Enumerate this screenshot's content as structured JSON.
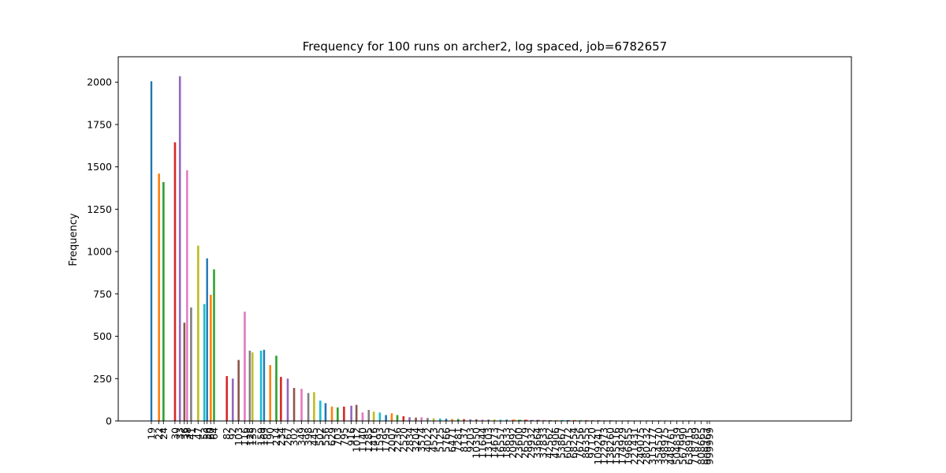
{
  "chart_data": {
    "type": "bar",
    "title": "Frequency for 100 runs on archer2, log spaced, job=6782657",
    "xlabel": "",
    "ylabel": "Frequency",
    "ylim": [
      0,
      2150
    ],
    "yticks": [
      0,
      250,
      500,
      750,
      1000,
      1250,
      1500,
      1750,
      2000
    ],
    "grid": false,
    "legend": "none",
    "colors": [
      "#1f77b4",
      "#ff7f0e",
      "#2ca02c",
      "#d62728",
      "#9467bd",
      "#8c564b",
      "#e377c2",
      "#7f7f7f",
      "#bcbd22",
      "#17becf"
    ],
    "categories": [
      "19",
      "22",
      "24",
      "30",
      "33",
      "36",
      "38",
      "41",
      "47",
      "53",
      "56",
      "60",
      "64",
      "82",
      "92",
      "103",
      "116",
      "128",
      "135",
      "159",
      "169",
      "190",
      "214",
      "234",
      "267",
      "302",
      "349",
      "398",
      "445",
      "502",
      "556",
      "629",
      "703",
      "795",
      "916",
      "1012",
      "1140",
      "1285",
      "1416",
      "1593",
      "1795",
      "2007",
      "2236",
      "2520",
      "2834",
      "3204",
      "3574",
      "4022",
      "4523",
      "5125",
      "5766",
      "6471",
      "7281",
      "8137",
      "9203",
      "10350",
      "11644",
      "13103",
      "14673",
      "16557",
      "18633",
      "20992",
      "23600",
      "26579",
      "29932",
      "33664",
      "37833",
      "42562",
      "47906",
      "53867",
      "60572",
      "68254",
      "76756",
      "86355",
      "97120",
      "109241",
      "122973",
      "138260",
      "155516",
      "174929",
      "196855",
      "221431",
      "249075",
      "280232",
      "315177",
      "354570",
      "398975",
      "448761",
      "504839",
      "567990",
      "638915",
      "718789",
      "808665",
      "909767",
      "999999"
    ],
    "values": [
      2005,
      1460,
      1410,
      1645,
      2035,
      580,
      1480,
      670,
      1035,
      690,
      960,
      745,
      895,
      265,
      250,
      360,
      645,
      415,
      405,
      415,
      420,
      330,
      385,
      260,
      250,
      195,
      190,
      165,
      170,
      120,
      105,
      85,
      80,
      85,
      90,
      95,
      50,
      65,
      55,
      50,
      35,
      45,
      35,
      28,
      22,
      20,
      22,
      18,
      16,
      14,
      13,
      12,
      12,
      11,
      10,
      10,
      9,
      9,
      9,
      8,
      8,
      8,
      7,
      7,
      6,
      6,
      6,
      5,
      5,
      5,
      5,
      5,
      4,
      4,
      4,
      4,
      4,
      4,
      3,
      3,
      3,
      3,
      3,
      3,
      3,
      3,
      3,
      3,
      3,
      3,
      3,
      2,
      2,
      2,
      2
    ]
  }
}
